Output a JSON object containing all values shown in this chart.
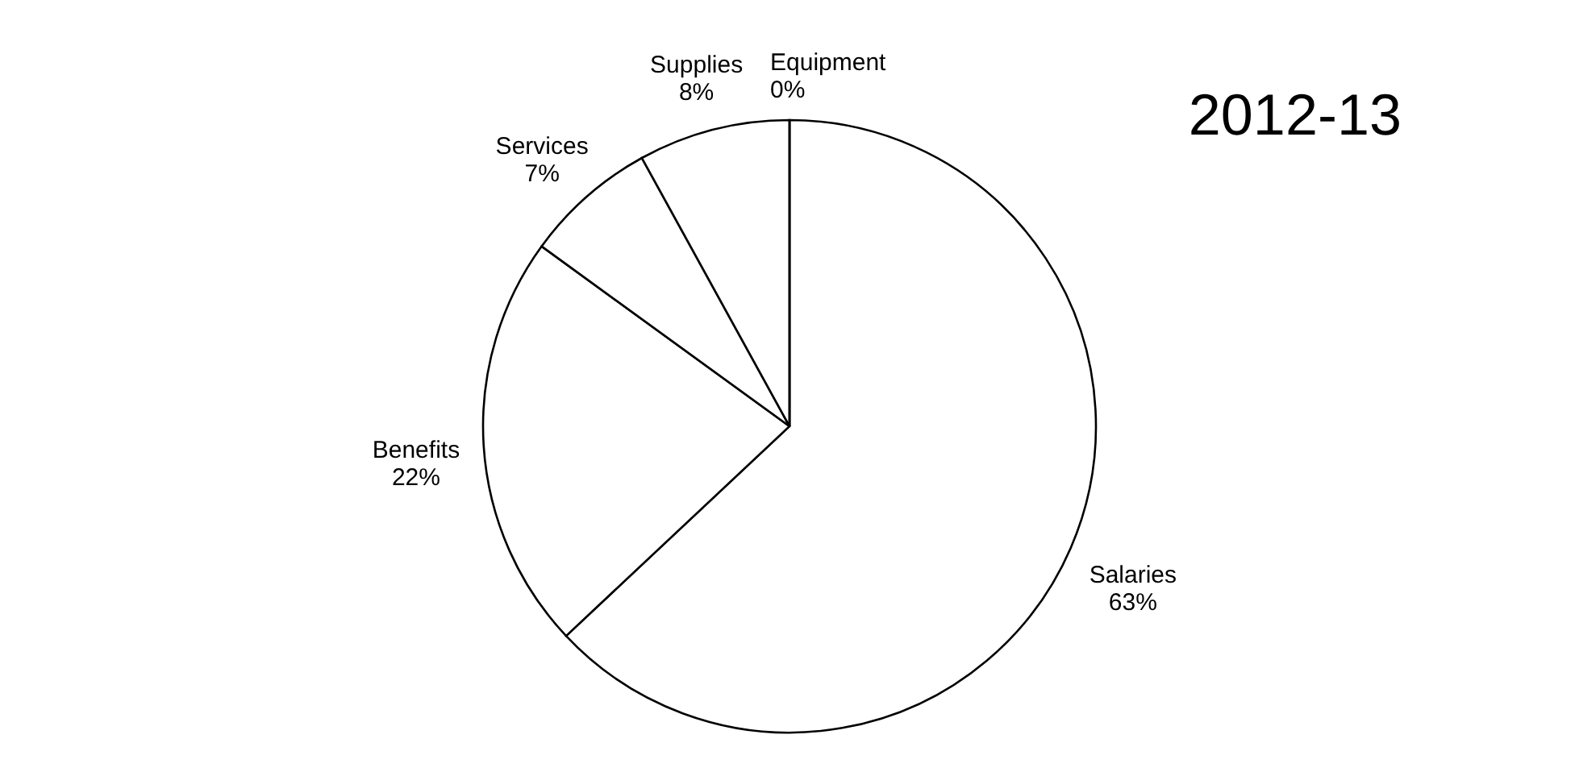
{
  "chart_data": {
    "type": "pie",
    "title": "2012-13",
    "categories": [
      "Salaries",
      "Benefits",
      "Services",
      "Supplies",
      "Equipment"
    ],
    "values": [
      63,
      22,
      7,
      8,
      0
    ],
    "value_labels": [
      "63%",
      "22%",
      "7%",
      "8%",
      "0%"
    ],
    "colors": [
      "#ffffff",
      "#ffffff",
      "#ffffff",
      "#ffffff",
      "#ffffff"
    ],
    "legend": false
  }
}
